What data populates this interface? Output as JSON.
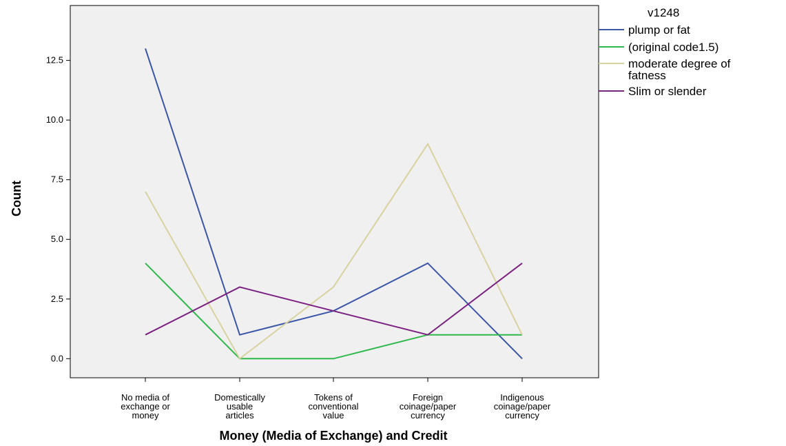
{
  "chart_data": {
    "type": "line",
    "xlabel": "Money (Media of Exchange) and Credit",
    "ylabel": "Count",
    "ylim": [
      -0.8,
      14.8
    ],
    "yticks": [
      "0.0",
      "2.5",
      "5.0",
      "7.5",
      "10.0",
      "12.5"
    ],
    "grid": false,
    "legend_position": "right",
    "legend_title": "v1248",
    "categories": [
      [
        "No media of",
        "exchange or",
        "money"
      ],
      [
        "Domestically",
        "usable",
        "articles"
      ],
      [
        "Tokens of",
        "conventional",
        "value"
      ],
      [
        "Foreign",
        "coinage/paper",
        "currency"
      ],
      [
        "Indigenous",
        "coinage/paper",
        "currency"
      ]
    ],
    "series": [
      {
        "name": "plump or fat",
        "label_lines": [
          "plump or fat"
        ],
        "color": "#3a55a8",
        "values": [
          13,
          1,
          2,
          4,
          0
        ]
      },
      {
        "name": "(original code1.5)",
        "label_lines": [
          "(original code1.5)"
        ],
        "color": "#2db84a",
        "values": [
          4,
          0,
          0,
          1,
          1
        ]
      },
      {
        "name": "moderate degree of fatness",
        "label_lines": [
          "moderate degree of",
          "fatness"
        ],
        "color": "#d8d2a0",
        "values": [
          7,
          0,
          3,
          9,
          1
        ]
      },
      {
        "name": "Slim or slender",
        "label_lines": [
          "Slim or slender"
        ],
        "color": "#7a2080",
        "values": [
          1,
          3,
          2,
          1,
          4
        ]
      }
    ],
    "background_color": "#f0f0f0"
  }
}
